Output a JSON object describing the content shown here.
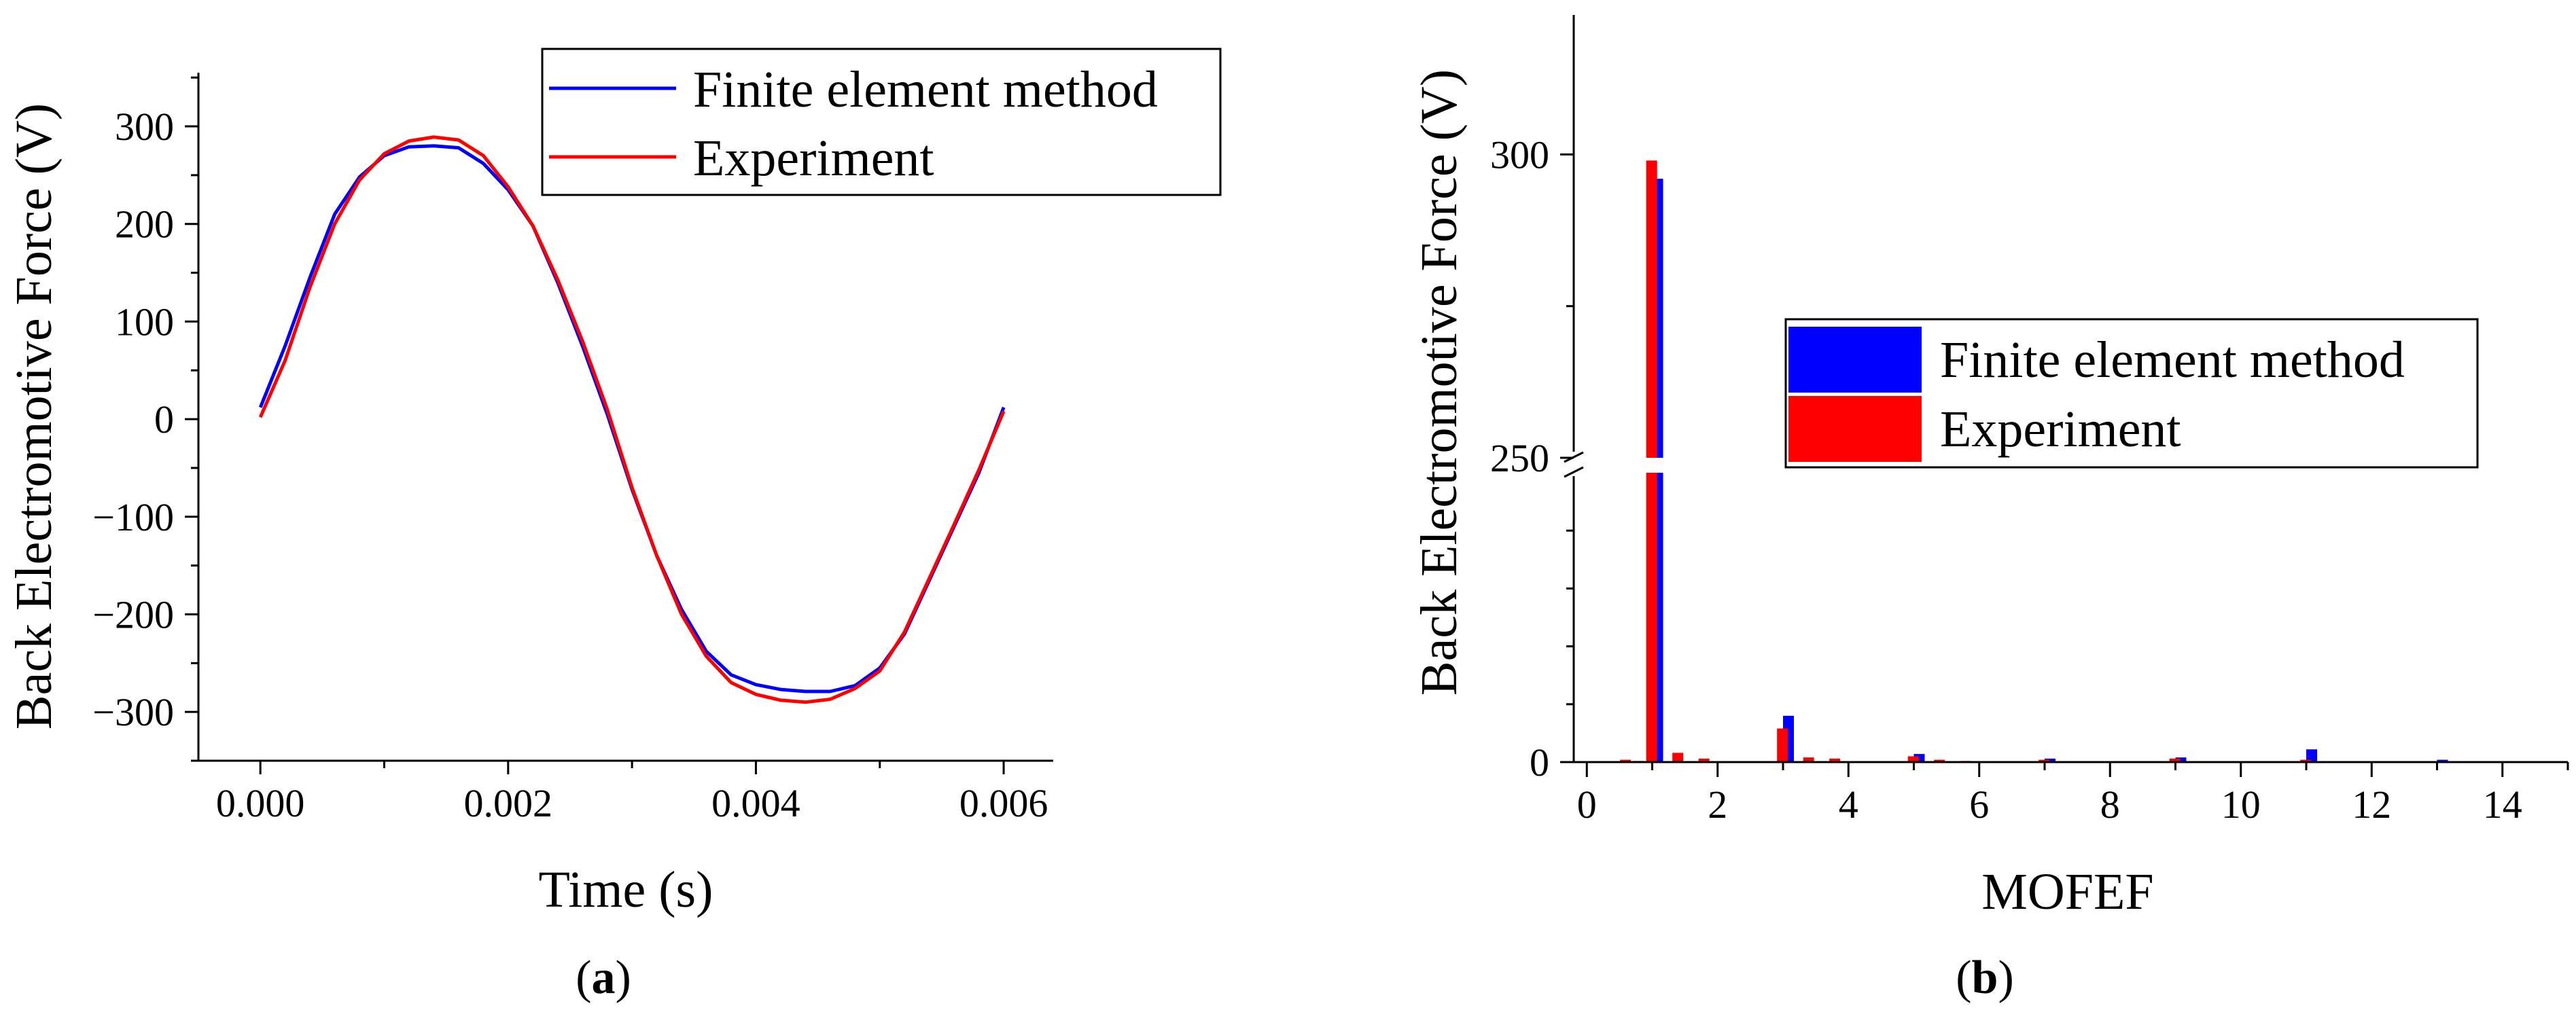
{
  "colors": {
    "fem": "#0000ff",
    "experiment": "#ff0000",
    "axis": "#000000"
  },
  "chart_data": [
    {
      "panel": "a",
      "panel_label_parts": [
        "(",
        "a",
        ")"
      ],
      "type": "line",
      "xlabel": "Time (s)",
      "ylabel": "Back Electromotive Force (V)",
      "xlim": [
        -0.0005,
        0.0064
      ],
      "ylim": [
        -350,
        355
      ],
      "xticks": [
        0.0,
        0.002,
        0.004,
        0.006
      ],
      "xtick_labels": [
        "0.000",
        "0.002",
        "0.004",
        "0.006"
      ],
      "yticks": [
        -300,
        -200,
        -100,
        0,
        100,
        200,
        300
      ],
      "ytick_labels": [
        "−300",
        "−200",
        "−100",
        "0",
        "100",
        "200",
        "300"
      ],
      "legend_position": "top-right",
      "series": [
        {
          "name": "Finite element method",
          "color": "#0000ff",
          "x": [
            0.0,
            0.0002,
            0.0004,
            0.0006,
            0.0008,
            0.001,
            0.0012,
            0.0014,
            0.0016,
            0.0018,
            0.002,
            0.0022,
            0.0024,
            0.0026,
            0.0028,
            0.003,
            0.0032,
            0.0034,
            0.0036,
            0.0038,
            0.004,
            0.0042,
            0.0044,
            0.0046,
            0.0048,
            0.005,
            0.0052,
            0.0054,
            0.0056,
            0.0058,
            0.006
          ],
          "y": [
            12,
            75,
            145,
            210,
            248,
            270,
            279,
            280,
            278,
            262,
            235,
            198,
            140,
            75,
            5,
            -72,
            -140,
            -195,
            -238,
            -262,
            -272,
            -277,
            -279,
            -279,
            -273,
            -255,
            -220,
            -165,
            -110,
            -55,
            12
          ]
        },
        {
          "name": "Experiment",
          "color": "#ff0000",
          "x": [
            0.0,
            0.0002,
            0.0004,
            0.0006,
            0.0008,
            0.001,
            0.0012,
            0.0014,
            0.0016,
            0.0018,
            0.002,
            0.0022,
            0.0024,
            0.0026,
            0.0028,
            0.003,
            0.0032,
            0.0034,
            0.0036,
            0.0038,
            0.004,
            0.0042,
            0.0044,
            0.0046,
            0.0048,
            0.005,
            0.0052,
            0.0054,
            0.0056,
            0.0058,
            0.006
          ],
          "y": [
            2,
            60,
            135,
            200,
            245,
            272,
            285,
            289,
            286,
            270,
            238,
            198,
            143,
            80,
            10,
            -70,
            -140,
            -200,
            -243,
            -270,
            -282,
            -288,
            -290,
            -287,
            -276,
            -258,
            -218,
            -163,
            -108,
            -52,
            8
          ]
        }
      ]
    },
    {
      "panel": "b",
      "panel_label_parts": [
        "(",
        "b",
        ")"
      ],
      "type": "bar",
      "xlabel": "MOFEF",
      "ylabel": "Back Electromotive Force (V)",
      "xlim": [
        -0.2,
        15
      ],
      "xticks": [
        0,
        2,
        4,
        6,
        8,
        10,
        12,
        14
      ],
      "xtick_labels": [
        "0",
        "2",
        "4",
        "6",
        "8",
        "10",
        "12",
        "14"
      ],
      "y_axis_break": {
        "lower_range": [
          0,
          250
        ],
        "upper_range": [
          250,
          323
        ]
      },
      "yticks": [
        0,
        250,
        300
      ],
      "ytick_labels": [
        "0",
        "250",
        "300"
      ],
      "legend_position": "center-right",
      "series": [
        {
          "name": "Finite element method",
          "color": "#0000ff",
          "x": [
            1,
            3,
            5,
            7,
            9,
            11,
            13
          ],
          "values": [
            296,
            40,
            7,
            3,
            4,
            11,
            2
          ]
        },
        {
          "name": "Experiment",
          "color": "#ff0000",
          "x": [
            0.55,
            0.75,
            0.95,
            1.35,
            1.75,
            2.95,
            3.35,
            3.75,
            4.95,
            5.35,
            5.75,
            6.95,
            8.95,
            10.95
          ],
          "values": [
            2,
            1,
            299,
            8,
            3,
            29,
            4,
            3,
            5,
            2,
            1,
            2,
            3,
            2
          ]
        }
      ]
    }
  ]
}
